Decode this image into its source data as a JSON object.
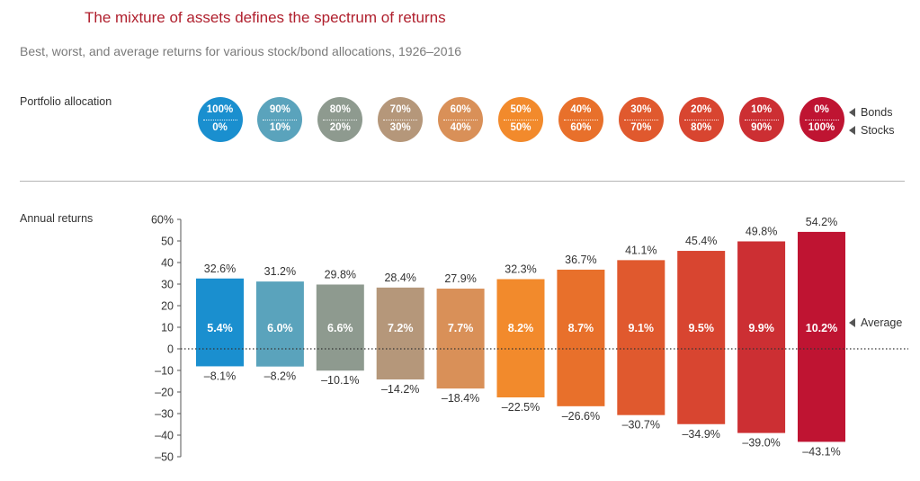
{
  "title": "The mixture of assets defines the spectrum of returns",
  "subtitle": "Best, worst, and average returns for various stock/bond allocations, 1926–2016",
  "allocation_label": "Portfolio allocation",
  "returns_label": "Annual returns",
  "bonds_label": "Bonds",
  "stocks_label": "Stocks",
  "average_label": "Average",
  "allocations": [
    {
      "bonds": "100%",
      "stocks": "0%",
      "color": "#1a8fcf"
    },
    {
      "bonds": "90%",
      "stocks": "10%",
      "color": "#5aa3bc"
    },
    {
      "bonds": "80%",
      "stocks": "20%",
      "color": "#8e9a8f"
    },
    {
      "bonds": "70%",
      "stocks": "30%",
      "color": "#b5977a"
    },
    {
      "bonds": "60%",
      "stocks": "40%",
      "color": "#d99058"
    },
    {
      "bonds": "50%",
      "stocks": "50%",
      "color": "#f28a2c"
    },
    {
      "bonds": "40%",
      "stocks": "60%",
      "color": "#e8702b"
    },
    {
      "bonds": "30%",
      "stocks": "70%",
      "color": "#e0592e"
    },
    {
      "bonds": "20%",
      "stocks": "80%",
      "color": "#d84530"
    },
    {
      "bonds": "10%",
      "stocks": "90%",
      "color": "#cc2f33"
    },
    {
      "bonds": "0%",
      "stocks": "100%",
      "color": "#bf1432"
    }
  ],
  "chart_data": {
    "type": "bar",
    "categories": [
      "100% bonds / 0% stocks",
      "90% / 10%",
      "80% / 20%",
      "70% / 30%",
      "60% / 40%",
      "50% / 50%",
      "40% / 60%",
      "30% / 70%",
      "20% / 80%",
      "10% / 90%",
      "0% / 100%"
    ],
    "best": [
      32.6,
      31.2,
      29.8,
      28.4,
      27.9,
      32.3,
      36.7,
      41.1,
      45.4,
      49.8,
      54.2
    ],
    "worst": [
      -8.1,
      -8.2,
      -10.1,
      -14.2,
      -18.4,
      -22.5,
      -26.6,
      -30.7,
      -34.9,
      -39.0,
      -43.1
    ],
    "average": [
      5.4,
      6.0,
      6.6,
      7.2,
      7.7,
      8.2,
      8.7,
      9.1,
      9.5,
      9.9,
      10.2
    ],
    "best_labels": [
      "32.6%",
      "31.2%",
      "29.8%",
      "28.4%",
      "27.9%",
      "32.3%",
      "36.7%",
      "41.1%",
      "45.4%",
      "49.8%",
      "54.2%"
    ],
    "worst_labels": [
      "–8.1%",
      "–8.2%",
      "–10.1%",
      "–14.2%",
      "–18.4%",
      "–22.5%",
      "–26.6%",
      "–30.7%",
      "–34.9%",
      "–39.0%",
      "–43.1%"
    ],
    "average_labels": [
      "5.4%",
      "6.0%",
      "6.6%",
      "7.2%",
      "7.7%",
      "8.2%",
      "8.7%",
      "9.1%",
      "9.5%",
      "9.9%",
      "10.2%"
    ],
    "yticks": [
      60,
      50,
      40,
      30,
      20,
      10,
      0,
      -10,
      -20,
      -30,
      -40,
      -50
    ],
    "ytick_labels": [
      "60%",
      "50",
      "40",
      "30",
      "20",
      "10",
      "0",
      "–10",
      "–20",
      "–30",
      "–40",
      "–50"
    ],
    "ylim": [
      -50,
      60
    ],
    "zero_line": "dotted",
    "grid": false
  }
}
